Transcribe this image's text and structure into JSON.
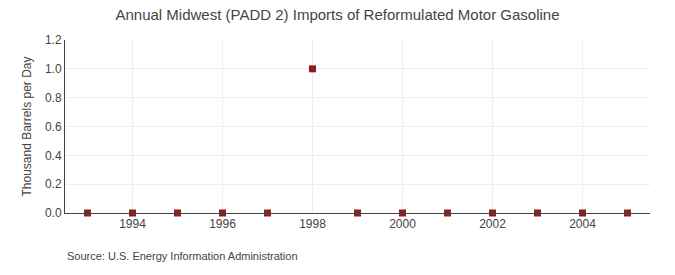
{
  "chart_data": {
    "type": "scatter",
    "title": "Annual Midwest (PADD 2) Imports of Reformulated Motor Gasoline",
    "y_label": "Thousand Barrels per Day",
    "annotations": [
      "Source: U.S. Energy Information Administration"
    ],
    "x": [
      1993,
      1994,
      1995,
      1996,
      1997,
      1998,
      1999,
      2000,
      2001,
      2002,
      2003,
      2004,
      2005
    ],
    "values": [
      0.0,
      0.0,
      0.0,
      0.0,
      0.0,
      1.0,
      0.0,
      0.0,
      0.0,
      0.0,
      0.0,
      0.0,
      0.0
    ],
    "color": "#8b2020",
    "marker": "square",
    "xlim": [
      1992.5,
      2005.5
    ],
    "ylim": [
      0.0,
      1.2
    ],
    "xticks": [
      1994,
      1996,
      1998,
      2000,
      2002,
      2004
    ],
    "yticks": [
      {
        "value": 0.0,
        "label": "0.0"
      },
      0.2,
      0.4,
      0.6,
      0.8,
      {
        "value": 1.0,
        "label": "1.0"
      },
      1.2
    ],
    "grid": true
  }
}
